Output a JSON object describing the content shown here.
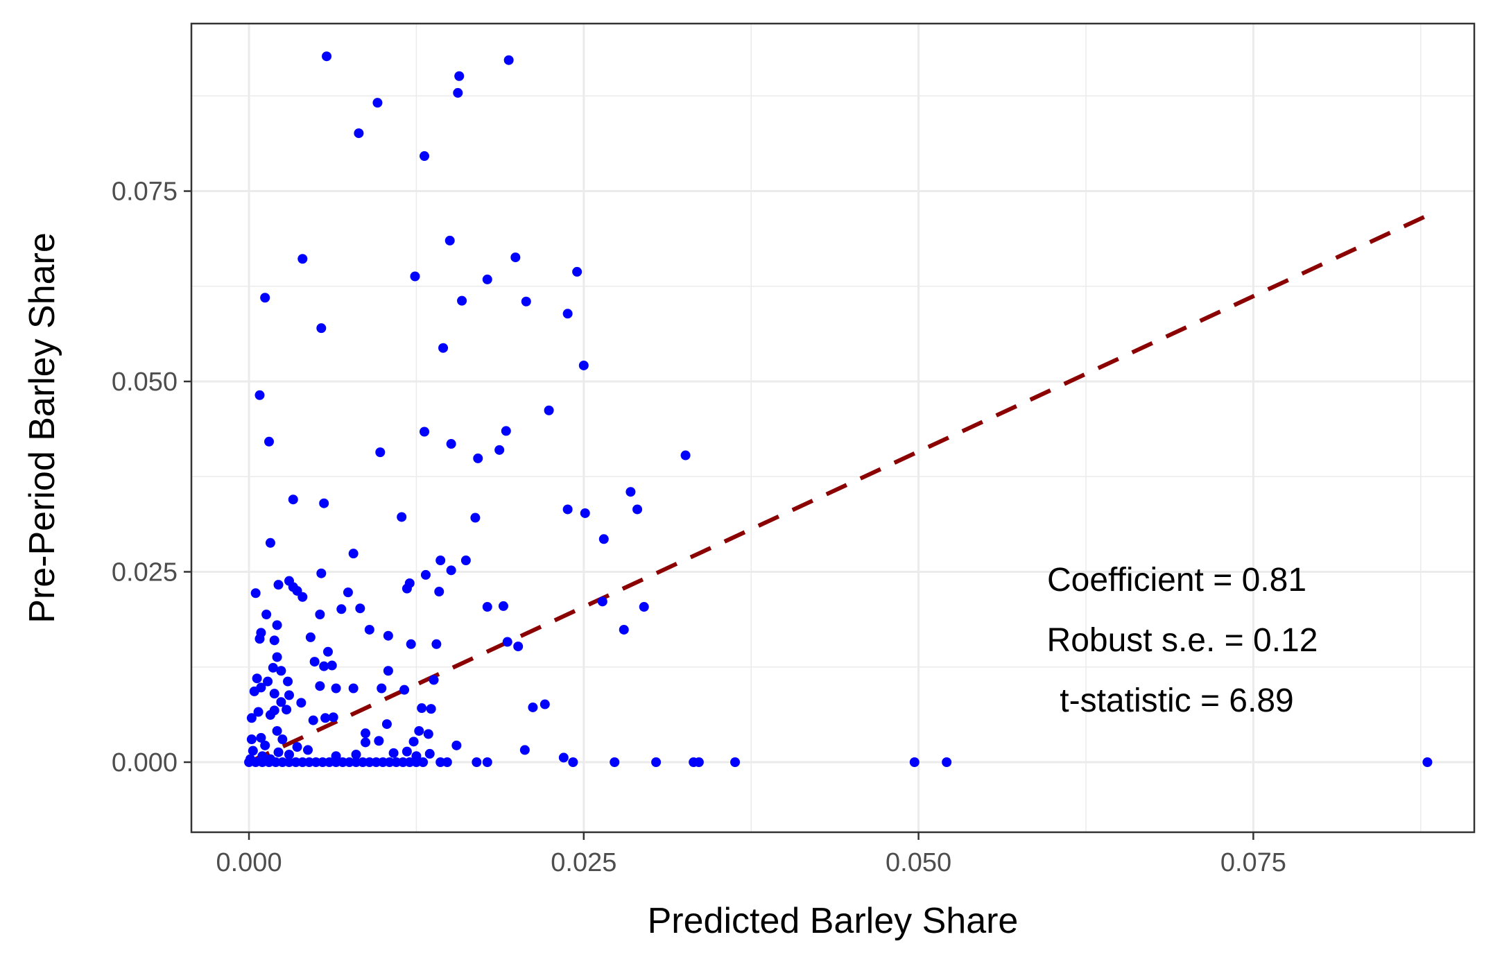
{
  "chart_data": {
    "type": "scatter",
    "title": "",
    "xlabel": "Predicted Barley Share",
    "ylabel": "Pre-Period Barley Share",
    "xlim": [
      -0.0043,
      0.0915
    ],
    "ylim": [
      -0.0092,
      0.097
    ],
    "xticks": [
      0.0,
      0.025,
      0.05,
      0.075
    ],
    "yticks": [
      0.0,
      0.025,
      0.05,
      0.075
    ],
    "xtick_labels": [
      "0.000",
      "0.025",
      "0.050",
      "0.075"
    ],
    "ytick_labels": [
      "0.000",
      "0.025",
      "0.050",
      "0.075"
    ],
    "grid": true,
    "point_color": "#0000ff",
    "fit_line": {
      "color": "#8b0000",
      "style": "dashed",
      "x": [
        0.0,
        0.088
      ],
      "y": [
        0.0,
        0.0718
      ]
    },
    "annotations": [
      "Coefficient = 0.81",
      "Robust s.e. = 0.12",
      "t-statistic = 6.89"
    ],
    "points": [
      [
        0.0058,
        0.0927
      ],
      [
        0.0194,
        0.0922
      ],
      [
        0.0157,
        0.0901
      ],
      [
        0.0156,
        0.0879
      ],
      [
        0.0096,
        0.0866
      ],
      [
        0.0082,
        0.0826
      ],
      [
        0.0131,
        0.0796
      ],
      [
        0.015,
        0.0685
      ],
      [
        0.004,
        0.0661
      ],
      [
        0.0199,
        0.0663
      ],
      [
        0.0245,
        0.0644
      ],
      [
        0.0124,
        0.0638
      ],
      [
        0.0178,
        0.0634
      ],
      [
        0.0012,
        0.061
      ],
      [
        0.0159,
        0.0606
      ],
      [
        0.0207,
        0.0605
      ],
      [
        0.0238,
        0.0589
      ],
      [
        0.0054,
        0.057
      ],
      [
        0.0145,
        0.0544
      ],
      [
        0.025,
        0.0521
      ],
      [
        0.0008,
        0.0482
      ],
      [
        0.0224,
        0.0462
      ],
      [
        0.0131,
        0.0434
      ],
      [
        0.0192,
        0.0435
      ],
      [
        0.0015,
        0.0421
      ],
      [
        0.0151,
        0.0418
      ],
      [
        0.0187,
        0.041
      ],
      [
        0.0098,
        0.0407
      ],
      [
        0.0171,
        0.0399
      ],
      [
        0.0326,
        0.0403
      ],
      [
        0.0285,
        0.0355
      ],
      [
        0.0033,
        0.0345
      ],
      [
        0.0056,
        0.034
      ],
      [
        0.0238,
        0.0332
      ],
      [
        0.0251,
        0.0327
      ],
      [
        0.029,
        0.0332
      ],
      [
        0.0114,
        0.0322
      ],
      [
        0.0169,
        0.0321
      ],
      [
        0.0265,
        0.0293
      ],
      [
        0.0016,
        0.0288
      ],
      [
        0.0078,
        0.0274
      ],
      [
        0.0143,
        0.0265
      ],
      [
        0.0162,
        0.0265
      ],
      [
        0.0151,
        0.0252
      ],
      [
        0.0054,
        0.0248
      ],
      [
        0.0132,
        0.0246
      ],
      [
        0.003,
        0.0238
      ],
      [
        0.0022,
        0.0233
      ],
      [
        0.012,
        0.0235
      ],
      [
        0.0118,
        0.0228
      ],
      [
        0.0033,
        0.023
      ],
      [
        0.0036,
        0.0225
      ],
      [
        0.0142,
        0.0224
      ],
      [
        0.0005,
        0.0222
      ],
      [
        0.0074,
        0.0223
      ],
      [
        0.004,
        0.0217
      ],
      [
        0.0264,
        0.0211
      ],
      [
        0.0295,
        0.0204
      ],
      [
        0.0178,
        0.0204
      ],
      [
        0.019,
        0.0205
      ],
      [
        0.0069,
        0.0201
      ],
      [
        0.0083,
        0.0202
      ],
      [
        0.0053,
        0.0194
      ],
      [
        0.0013,
        0.0194
      ],
      [
        0.0021,
        0.018
      ],
      [
        0.009,
        0.0174
      ],
      [
        0.028,
        0.0174
      ],
      [
        0.0009,
        0.017
      ],
      [
        0.0008,
        0.0162
      ],
      [
        0.0046,
        0.0164
      ],
      [
        0.0104,
        0.0166
      ],
      [
        0.0019,
        0.016
      ],
      [
        0.0121,
        0.0155
      ],
      [
        0.014,
        0.0155
      ],
      [
        0.0193,
        0.0158
      ],
      [
        0.0201,
        0.0152
      ],
      [
        0.0059,
        0.0145
      ],
      [
        0.0021,
        0.0138
      ],
      [
        0.0049,
        0.0132
      ],
      [
        0.0056,
        0.0126
      ],
      [
        0.0062,
        0.0127
      ],
      [
        0.0018,
        0.0124
      ],
      [
        0.0024,
        0.012
      ],
      [
        0.0104,
        0.012
      ],
      [
        0.0006,
        0.011
      ],
      [
        0.0014,
        0.0106
      ],
      [
        0.0029,
        0.0106
      ],
      [
        0.0053,
        0.01
      ],
      [
        0.0065,
        0.0097
      ],
      [
        0.0078,
        0.0097
      ],
      [
        0.0099,
        0.0097
      ],
      [
        0.0138,
        0.0108
      ],
      [
        0.0009,
        0.0098
      ],
      [
        0.0019,
        0.009
      ],
      [
        0.0116,
        0.0095
      ],
      [
        0.0004,
        0.0093
      ],
      [
        0.003,
        0.0088
      ],
      [
        0.0024,
        0.0079
      ],
      [
        0.0039,
        0.0078
      ],
      [
        0.0019,
        0.0068
      ],
      [
        0.0028,
        0.0069
      ],
      [
        0.0136,
        0.007
      ],
      [
        0.0129,
        0.0071
      ],
      [
        0.0221,
        0.0076
      ],
      [
        0.0212,
        0.0072
      ],
      [
        0.0007,
        0.0066
      ],
      [
        0.0057,
        0.0058
      ],
      [
        0.0063,
        0.0059
      ],
      [
        0.0016,
        0.0062
      ],
      [
        0.0048,
        0.0055
      ],
      [
        0.0002,
        0.0058
      ],
      [
        0.0103,
        0.005
      ],
      [
        0.0021,
        0.0041
      ],
      [
        0.0127,
        0.0041
      ],
      [
        0.0087,
        0.0038
      ],
      [
        0.0134,
        0.0037
      ],
      [
        0.0009,
        0.0032
      ],
      [
        0.0002,
        0.003
      ],
      [
        0.0025,
        0.003
      ],
      [
        0.0097,
        0.0028
      ],
      [
        0.0123,
        0.0027
      ],
      [
        0.0087,
        0.0026
      ],
      [
        0.0012,
        0.0022
      ],
      [
        0.0036,
        0.002
      ],
      [
        0.0044,
        0.0016
      ],
      [
        0.0155,
        0.0022
      ],
      [
        0.0206,
        0.0016
      ],
      [
        0.0003,
        0.0015
      ],
      [
        0.0022,
        0.0013
      ],
      [
        0.0118,
        0.0014
      ],
      [
        0.0235,
        0.0006
      ],
      [
        0.0001,
        0.0004
      ],
      [
        0.001,
        0.0008
      ],
      [
        0.0016,
        0.0004
      ],
      [
        0.003,
        0.001
      ],
      [
        0.0065,
        0.0008
      ],
      [
        0.008,
        0.001
      ],
      [
        0.0108,
        0.0012
      ],
      [
        0.0125,
        0.0008
      ],
      [
        0.0135,
        0.0011
      ],
      [
        0.0,
        0.0
      ],
      [
        0.0005,
        0.0
      ],
      [
        0.001,
        0.0
      ],
      [
        0.0015,
        0.0
      ],
      [
        0.002,
        0.0
      ],
      [
        0.0025,
        0.0
      ],
      [
        0.003,
        0.0
      ],
      [
        0.0035,
        0.0
      ],
      [
        0.004,
        0.0
      ],
      [
        0.0045,
        0.0
      ],
      [
        0.005,
        0.0
      ],
      [
        0.0055,
        0.0
      ],
      [
        0.006,
        0.0
      ],
      [
        0.0065,
        0.0
      ],
      [
        0.007,
        0.0
      ],
      [
        0.0075,
        0.0
      ],
      [
        0.008,
        0.0
      ],
      [
        0.0085,
        0.0
      ],
      [
        0.009,
        0.0
      ],
      [
        0.0095,
        0.0
      ],
      [
        0.01,
        0.0
      ],
      [
        0.0105,
        0.0
      ],
      [
        0.011,
        0.0
      ],
      [
        0.0115,
        0.0
      ],
      [
        0.012,
        0.0
      ],
      [
        0.0125,
        0.0
      ],
      [
        0.013,
        0.0
      ],
      [
        0.0143,
        0.0
      ],
      [
        0.0148,
        0.0
      ],
      [
        0.017,
        0.0
      ],
      [
        0.0178,
        0.0
      ],
      [
        0.0242,
        0.0
      ],
      [
        0.0273,
        0.0
      ],
      [
        0.0304,
        0.0
      ],
      [
        0.0332,
        0.0
      ],
      [
        0.0336,
        0.0
      ],
      [
        0.0363,
        0.0
      ],
      [
        0.0497,
        0.0
      ],
      [
        0.0521,
        0.0
      ],
      [
        0.088,
        0.0
      ]
    ]
  }
}
